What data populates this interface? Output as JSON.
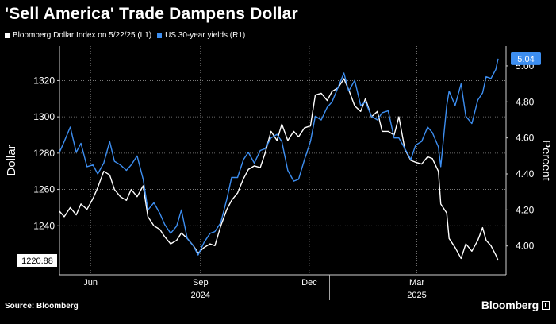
{
  "header": {
    "title": "'Sell America' Trade Dampens Dollar"
  },
  "legend": {
    "items": [
      {
        "label": "Bloomberg Dollar Index on 5/22/25 (L1)",
        "color": "#ffffff"
      },
      {
        "label": "US 30-year yields  (R1)",
        "color": "#3d8ef0"
      }
    ]
  },
  "footer": {
    "source": "Source: Bloomberg",
    "brand": "Bloomberg"
  },
  "chart_data": {
    "type": "line",
    "left_axis": {
      "label": "Dollar",
      "ticks": [
        "1240",
        "1260",
        "1280",
        "1300",
        "1320"
      ],
      "ylim": [
        1213,
        1339
      ]
    },
    "right_axis": {
      "label": "Percent",
      "ticks": [
        "4.00",
        "4.20",
        "4.40",
        "4.60",
        "4.80",
        "5.00"
      ],
      "ylim": [
        3.84,
        5.11
      ]
    },
    "x_axis": {
      "range": [
        "2024-05-20",
        "2025-05-22"
      ],
      "month_ticks": [
        {
          "label": "Jun",
          "date": "2024-06-15"
        },
        {
          "label": "Sep",
          "date": "2024-09-15"
        },
        {
          "label": "Dec",
          "date": "2024-12-15"
        },
        {
          "label": "Mar",
          "date": "2025-03-15"
        }
      ],
      "year_labels": [
        {
          "label": "2024",
          "date": "2024-09-15"
        },
        {
          "label": "2025",
          "date": "2025-03-15"
        }
      ]
    },
    "grid": true,
    "last_value_labels": {
      "left": "1220.88",
      "right": "5.04"
    },
    "series": [
      {
        "name": "Bloomberg Dollar Index on 5/22/25 (L1)",
        "axis": "left",
        "color": "#ffffff",
        "points": [
          [
            "2024-05-20",
            1248
          ],
          [
            "2024-05-24",
            1245
          ],
          [
            "2024-05-29",
            1250
          ],
          [
            "2024-06-03",
            1246
          ],
          [
            "2024-06-07",
            1252
          ],
          [
            "2024-06-12",
            1249
          ],
          [
            "2024-06-17",
            1255
          ],
          [
            "2024-06-21",
            1261
          ],
          [
            "2024-06-26",
            1270
          ],
          [
            "2024-07-01",
            1268
          ],
          [
            "2024-07-05",
            1260
          ],
          [
            "2024-07-10",
            1256
          ],
          [
            "2024-07-15",
            1254
          ],
          [
            "2024-07-19",
            1260
          ],
          [
            "2024-07-24",
            1256
          ],
          [
            "2024-07-29",
            1262
          ],
          [
            "2024-08-02",
            1245
          ],
          [
            "2024-08-07",
            1240
          ],
          [
            "2024-08-12",
            1238
          ],
          [
            "2024-08-16",
            1234
          ],
          [
            "2024-08-21",
            1230
          ],
          [
            "2024-08-26",
            1232
          ],
          [
            "2024-08-30",
            1236
          ],
          [
            "2024-09-04",
            1233
          ],
          [
            "2024-09-09",
            1229
          ],
          [
            "2024-09-13",
            1225
          ],
          [
            "2024-09-18",
            1228
          ],
          [
            "2024-09-23",
            1230
          ],
          [
            "2024-09-27",
            1229
          ],
          [
            "2024-10-02",
            1240
          ],
          [
            "2024-10-07",
            1249
          ],
          [
            "2024-10-11",
            1254
          ],
          [
            "2024-10-16",
            1258
          ],
          [
            "2024-10-21",
            1266
          ],
          [
            "2024-10-25",
            1271
          ],
          [
            "2024-10-30",
            1273
          ],
          [
            "2024-11-04",
            1272
          ],
          [
            "2024-11-08",
            1280
          ],
          [
            "2024-11-13",
            1292
          ],
          [
            "2024-11-18",
            1287
          ],
          [
            "2024-11-22",
            1296
          ],
          [
            "2024-11-27",
            1287
          ],
          [
            "2024-12-02",
            1292
          ],
          [
            "2024-12-06",
            1289
          ],
          [
            "2024-12-11",
            1294
          ],
          [
            "2024-12-16",
            1295
          ],
          [
            "2024-12-20",
            1312
          ],
          [
            "2024-12-25",
            1313
          ],
          [
            "2024-12-30",
            1309
          ],
          [
            "2025-01-03",
            1314
          ],
          [
            "2025-01-08",
            1316
          ],
          [
            "2025-01-13",
            1321
          ],
          [
            "2025-01-17",
            1315
          ],
          [
            "2025-01-22",
            1306
          ],
          [
            "2025-01-27",
            1303
          ],
          [
            "2025-01-31",
            1310
          ],
          [
            "2025-02-05",
            1300
          ],
          [
            "2025-02-10",
            1303
          ],
          [
            "2025-02-14",
            1292
          ],
          [
            "2025-02-19",
            1292
          ],
          [
            "2025-02-24",
            1290
          ],
          [
            "2025-02-28",
            1300
          ],
          [
            "2025-03-05",
            1282
          ],
          [
            "2025-03-10",
            1276
          ],
          [
            "2025-03-14",
            1275
          ],
          [
            "2025-03-19",
            1274
          ],
          [
            "2025-03-24",
            1278
          ],
          [
            "2025-03-28",
            1277
          ],
          [
            "2025-04-02",
            1270
          ],
          [
            "2025-04-04",
            1252
          ],
          [
            "2025-04-09",
            1247
          ],
          [
            "2025-04-11",
            1233
          ],
          [
            "2025-04-16",
            1228
          ],
          [
            "2025-04-21",
            1222
          ],
          [
            "2025-04-25",
            1230
          ],
          [
            "2025-04-30",
            1226
          ],
          [
            "2025-05-05",
            1232
          ],
          [
            "2025-05-09",
            1239
          ],
          [
            "2025-05-12",
            1232
          ],
          [
            "2025-05-16",
            1229
          ],
          [
            "2025-05-20",
            1224
          ],
          [
            "2025-05-22",
            1220.88
          ]
        ]
      },
      {
        "name": "US 30-year yields  (R1)",
        "axis": "right",
        "color": "#3d8ef0",
        "points": [
          [
            "2024-05-20",
            4.52
          ],
          [
            "2024-05-24",
            4.58
          ],
          [
            "2024-05-29",
            4.66
          ],
          [
            "2024-06-03",
            4.52
          ],
          [
            "2024-06-07",
            4.57
          ],
          [
            "2024-06-12",
            4.44
          ],
          [
            "2024-06-17",
            4.45
          ],
          [
            "2024-06-21",
            4.4
          ],
          [
            "2024-06-26",
            4.46
          ],
          [
            "2024-07-01",
            4.58
          ],
          [
            "2024-07-05",
            4.47
          ],
          [
            "2024-07-10",
            4.45
          ],
          [
            "2024-07-15",
            4.42
          ],
          [
            "2024-07-19",
            4.45
          ],
          [
            "2024-07-24",
            4.5
          ],
          [
            "2024-07-29",
            4.37
          ],
          [
            "2024-08-02",
            4.2
          ],
          [
            "2024-08-07",
            4.24
          ],
          [
            "2024-08-12",
            4.18
          ],
          [
            "2024-08-16",
            4.12
          ],
          [
            "2024-08-21",
            4.07
          ],
          [
            "2024-08-26",
            4.11
          ],
          [
            "2024-08-30",
            4.2
          ],
          [
            "2024-09-04",
            4.04
          ],
          [
            "2024-09-09",
            4.0
          ],
          [
            "2024-09-13",
            3.95
          ],
          [
            "2024-09-18",
            4.02
          ],
          [
            "2024-09-23",
            4.07
          ],
          [
            "2024-09-27",
            4.08
          ],
          [
            "2024-10-02",
            4.13
          ],
          [
            "2024-10-07",
            4.26
          ],
          [
            "2024-10-11",
            4.38
          ],
          [
            "2024-10-16",
            4.38
          ],
          [
            "2024-10-21",
            4.48
          ],
          [
            "2024-10-25",
            4.52
          ],
          [
            "2024-10-30",
            4.46
          ],
          [
            "2024-11-04",
            4.53
          ],
          [
            "2024-11-08",
            4.54
          ],
          [
            "2024-11-13",
            4.6
          ],
          [
            "2024-11-18",
            4.62
          ],
          [
            "2024-11-22",
            4.58
          ],
          [
            "2024-11-27",
            4.42
          ],
          [
            "2024-12-02",
            4.36
          ],
          [
            "2024-12-06",
            4.37
          ],
          [
            "2024-12-11",
            4.48
          ],
          [
            "2024-12-16",
            4.58
          ],
          [
            "2024-12-20",
            4.72
          ],
          [
            "2024-12-25",
            4.7
          ],
          [
            "2024-12-30",
            4.77
          ],
          [
            "2025-01-03",
            4.8
          ],
          [
            "2025-01-08",
            4.88
          ],
          [
            "2025-01-13",
            4.96
          ],
          [
            "2025-01-17",
            4.86
          ],
          [
            "2025-01-22",
            4.92
          ],
          [
            "2025-01-27",
            4.78
          ],
          [
            "2025-01-31",
            4.8
          ],
          [
            "2025-02-05",
            4.72
          ],
          [
            "2025-02-10",
            4.7
          ],
          [
            "2025-02-14",
            4.74
          ],
          [
            "2025-02-19",
            4.75
          ],
          [
            "2025-02-24",
            4.6
          ],
          [
            "2025-02-28",
            4.6
          ],
          [
            "2025-03-05",
            4.54
          ],
          [
            "2025-03-10",
            4.48
          ],
          [
            "2025-03-14",
            4.56
          ],
          [
            "2025-03-19",
            4.58
          ],
          [
            "2025-03-24",
            4.66
          ],
          [
            "2025-03-28",
            4.63
          ],
          [
            "2025-04-02",
            4.55
          ],
          [
            "2025-04-04",
            4.44
          ],
          [
            "2025-04-09",
            4.78
          ],
          [
            "2025-04-11",
            4.86
          ],
          [
            "2025-04-16",
            4.78
          ],
          [
            "2025-04-21",
            4.9
          ],
          [
            "2025-04-25",
            4.72
          ],
          [
            "2025-04-30",
            4.68
          ],
          [
            "2025-05-05",
            4.81
          ],
          [
            "2025-05-09",
            4.85
          ],
          [
            "2025-05-12",
            4.94
          ],
          [
            "2025-05-16",
            4.93
          ],
          [
            "2025-05-20",
            4.98
          ],
          [
            "2025-05-22",
            5.04
          ]
        ]
      }
    ]
  }
}
